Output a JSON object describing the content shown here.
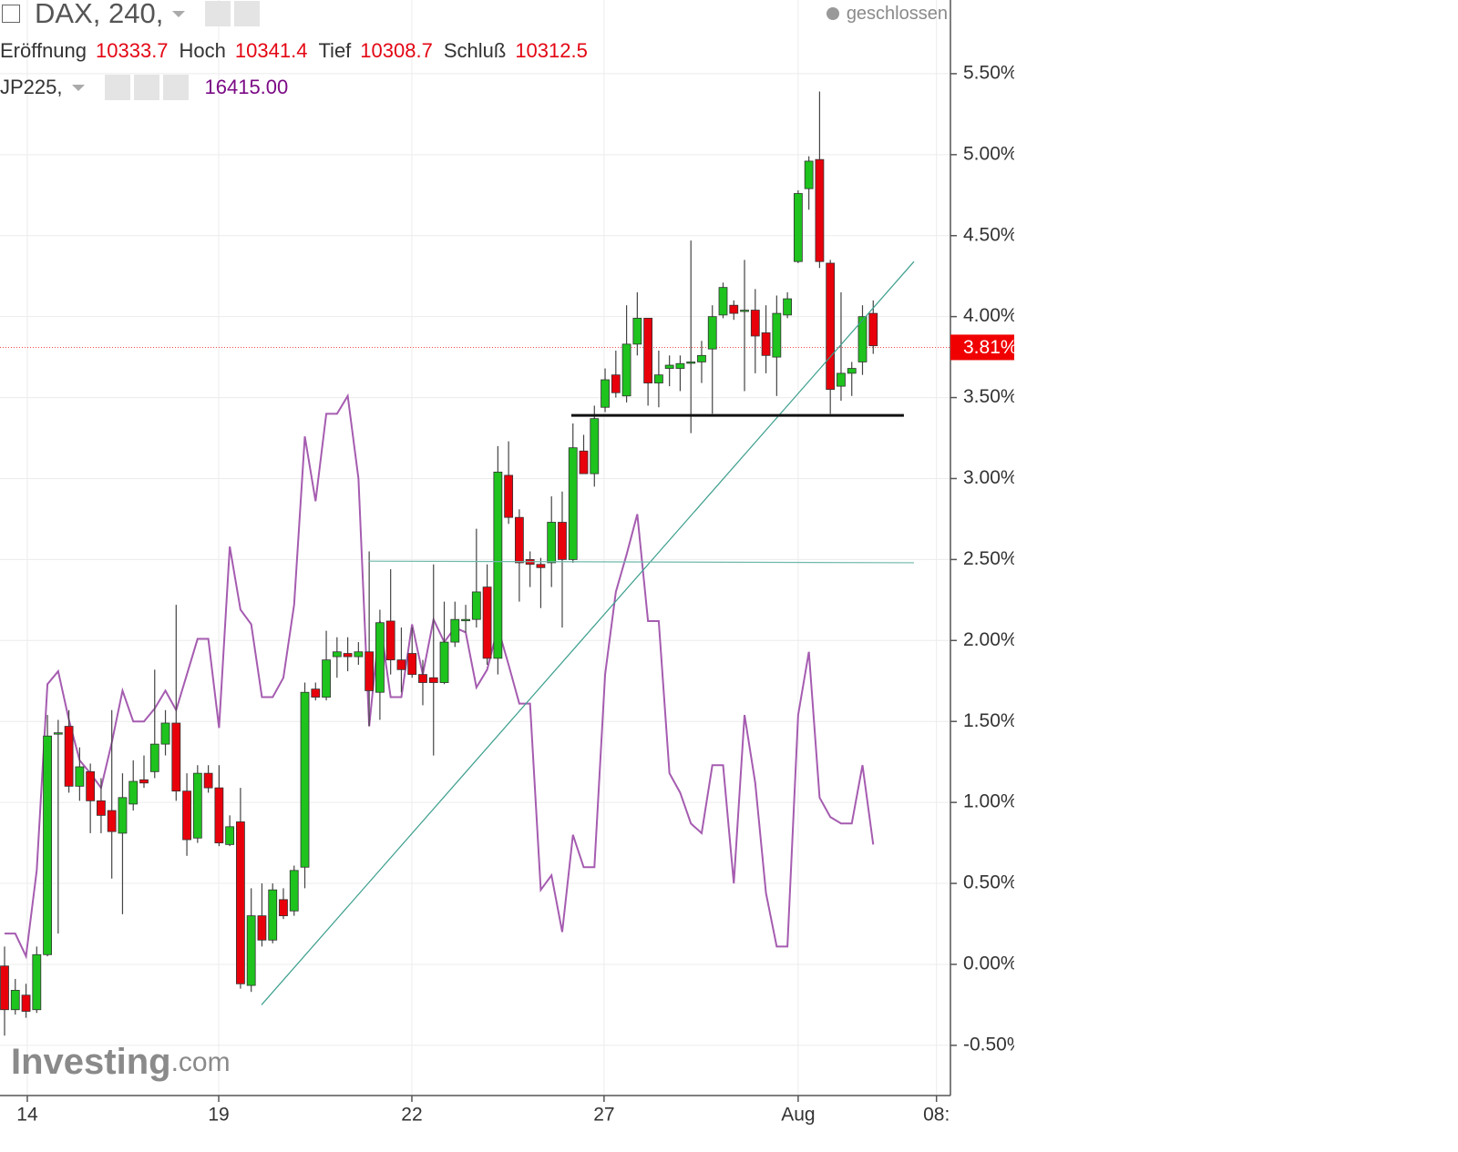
{
  "chart_data": {
    "type": "candlestick",
    "status": "geschlossen",
    "ohlc_header": [
      {
        "label": "Eröffnung",
        "value": "10333.7"
      },
      {
        "label": "Hoch",
        "value": "10341.4"
      },
      {
        "label": "Tief",
        "value": "10308.7"
      },
      {
        "label": "Schluß",
        "value": "10312.5"
      }
    ],
    "compare_value": "16415.00",
    "watermark": [
      "Investing",
      ".com"
    ],
    "x": [
      1,
      2,
      3,
      4,
      5,
      6,
      7,
      8,
      9,
      10,
      11,
      12,
      13,
      14,
      15,
      16,
      17,
      18,
      19,
      20,
      21,
      22,
      23,
      24,
      25,
      26,
      27,
      28,
      29,
      30,
      31,
      32,
      33,
      34,
      35,
      36,
      37,
      38,
      39,
      40,
      41,
      42,
      43,
      44,
      45,
      46,
      47,
      48,
      49,
      50,
      51,
      52,
      53,
      54,
      55,
      56,
      57,
      58,
      59,
      60,
      61,
      62,
      63,
      64,
      65,
      66,
      67,
      68,
      69,
      70,
      71,
      72,
      73,
      74,
      75,
      76,
      77,
      78,
      79,
      80,
      81,
      82
    ],
    "series": [
      {
        "name": "DAX, 240,",
        "type": "candlestick",
        "up_color": "#1ec31e",
        "down_color": "#e8000b",
        "open": [
          -0.01,
          -0.28,
          -0.19,
          -0.28,
          0.06,
          1.43,
          1.47,
          1.1,
          1.19,
          1.01,
          0.95,
          0.81,
          0.99,
          1.14,
          1.19,
          1.36,
          1.49,
          1.07,
          0.78,
          1.18,
          1.09,
          0.74,
          0.88,
          -0.13,
          0.3,
          0.15,
          0.4,
          0.33,
          0.6,
          1.7,
          1.65,
          1.9,
          1.92,
          1.9,
          1.93,
          1.68,
          2.12,
          1.88,
          1.92,
          1.79,
          1.77,
          1.74,
          1.99,
          2.13,
          2.13,
          2.33,
          1.89,
          3.02,
          2.76,
          2.5,
          2.47,
          2.48,
          2.73,
          2.5,
          3.17,
          3.03,
          3.44,
          3.64,
          3.51,
          3.83,
          3.99,
          3.59,
          3.68,
          3.68,
          3.72,
          3.72,
          3.8,
          4.01,
          4.07,
          4.04,
          4.04,
          3.9,
          3.75,
          4.01,
          4.34,
          4.79,
          4.97,
          4.33,
          3.57,
          3.65,
          3.72,
          4.02
        ],
        "high": [
          0.11,
          -0.09,
          -0.12,
          0.11,
          1.54,
          1.51,
          1.57,
          1.34,
          1.24,
          1.15,
          1.57,
          1.18,
          1.26,
          1.29,
          1.82,
          1.57,
          2.22,
          1.18,
          1.23,
          1.23,
          1.23,
          0.92,
          1.09,
          0.47,
          0.5,
          0.5,
          0.47,
          0.61,
          1.74,
          1.74,
          2.06,
          2.02,
          2.02,
          1.99,
          2.55,
          2.19,
          2.44,
          2.08,
          2.08,
          1.88,
          2.47,
          2.24,
          2.24,
          2.22,
          2.69,
          2.47,
          3.2,
          3.23,
          2.81,
          2.55,
          2.51,
          2.89,
          2.92,
          3.34,
          3.27,
          3.45,
          3.68,
          3.79,
          4.07,
          4.15,
          3.99,
          3.79,
          3.76,
          3.76,
          4.47,
          3.85,
          4.07,
          4.21,
          4.1,
          4.35,
          4.17,
          4.07,
          4.13,
          4.15,
          4.78,
          4.99,
          5.39,
          4.35,
          4.15,
          3.72,
          4.07,
          4.1
        ],
        "low": [
          -0.44,
          -0.31,
          -0.33,
          -0.3,
          0.05,
          0.19,
          1.06,
          1.01,
          0.81,
          0.81,
          0.53,
          0.31,
          0.95,
          1.09,
          1.15,
          1.29,
          1.01,
          0.67,
          0.75,
          1.06,
          0.73,
          0.73,
          -0.15,
          -0.17,
          0.11,
          0.13,
          0.28,
          0.3,
          0.47,
          1.63,
          1.63,
          1.77,
          1.81,
          1.85,
          1.47,
          1.51,
          1.79,
          1.68,
          1.77,
          1.6,
          1.29,
          1.73,
          1.96,
          2.05,
          2.08,
          1.85,
          1.79,
          2.72,
          2.24,
          2.33,
          2.2,
          2.33,
          2.08,
          2.48,
          3.03,
          2.95,
          3.41,
          3.5,
          3.47,
          3.76,
          3.45,
          3.44,
          3.57,
          3.54,
          3.28,
          3.59,
          3.4,
          3.99,
          3.98,
          3.54,
          3.65,
          3.65,
          3.51,
          3.99,
          4.33,
          4.66,
          4.3,
          3.4,
          3.48,
          3.51,
          3.64,
          3.77
        ],
        "close": [
          -0.28,
          -0.16,
          -0.29,
          0.06,
          1.41,
          1.43,
          1.1,
          1.22,
          1.01,
          0.92,
          0.82,
          1.03,
          1.13,
          1.12,
          1.36,
          1.49,
          1.07,
          0.77,
          1.18,
          1.09,
          0.75,
          0.85,
          -0.12,
          0.3,
          0.15,
          0.46,
          0.3,
          0.58,
          1.68,
          1.65,
          1.88,
          1.93,
          1.9,
          1.93,
          1.69,
          2.11,
          1.88,
          1.82,
          1.79,
          1.74,
          1.74,
          1.99,
          2.13,
          2.13,
          2.3,
          1.89,
          3.04,
          2.76,
          2.48,
          2.47,
          2.45,
          2.73,
          2.5,
          3.19,
          3.03,
          3.37,
          3.61,
          3.53,
          3.83,
          3.99,
          3.59,
          3.64,
          3.7,
          3.71,
          3.72,
          3.76,
          4.0,
          4.18,
          4.02,
          4.04,
          3.88,
          3.76,
          4.02,
          4.11,
          4.76,
          4.96,
          4.34,
          3.55,
          3.65,
          3.68,
          4.0,
          3.82
        ]
      },
      {
        "name": "JP225,",
        "type": "line",
        "color": "#a55cb0",
        "values": [
          0.19,
          0.19,
          0.05,
          0.58,
          1.73,
          1.81,
          1.51,
          1.26,
          1.18,
          1.09,
          1.37,
          1.69,
          1.5,
          1.5,
          1.58,
          1.69,
          1.57,
          1.79,
          2.01,
          2.01,
          1.46,
          2.58,
          2.19,
          2.1,
          1.65,
          1.65,
          1.77,
          2.22,
          3.26,
          2.86,
          3.4,
          3.4,
          3.51,
          3.0,
          1.47,
          2.12,
          1.65,
          1.65,
          2.1,
          1.79,
          2.13,
          1.99,
          2.08,
          2.05,
          1.71,
          1.82,
          2.08,
          1.85,
          1.61,
          1.61,
          0.46,
          0.55,
          0.2,
          0.8,
          0.6,
          0.6,
          1.79,
          2.3,
          2.53,
          2.78,
          2.12,
          2.12,
          1.18,
          1.06,
          0.87,
          0.81,
          1.23,
          1.23,
          0.5,
          1.54,
          1.12,
          0.44,
          0.11,
          0.11,
          1.54,
          1.93,
          1.03,
          0.91,
          0.87,
          0.87,
          1.23,
          0.74
        ]
      }
    ],
    "trend_lines": [
      {
        "x1": 24.96,
        "y1": -0.25,
        "x2": 85.8,
        "y2": 4.34,
        "color": "#3a9e8c",
        "width": 1.2
      },
      {
        "x1": 34.98,
        "y1": 2.49,
        "x2": 85.8,
        "y2": 2.48,
        "color": "#6fb8ab",
        "width": 1.2
      },
      {
        "x1": 53.85,
        "y1": 3.39,
        "x2": 84.86,
        "y2": 3.39,
        "color": "#111111",
        "width": 3
      }
    ],
    "last_price": {
      "value": 3.81,
      "label": "3.81%",
      "color": "#f00000"
    },
    "xlim": [
      0.575,
      89.2
    ],
    "ylim": [
      -0.81,
      5.955
    ],
    "xticks": [
      {
        "value": 3.12,
        "label": "14"
      },
      {
        "value": 20.97,
        "label": "19"
      },
      {
        "value": 38.98,
        "label": "22"
      },
      {
        "value": 56.9,
        "label": "27"
      },
      {
        "value": 75.0,
        "label": "Aug"
      },
      {
        "value": 87.9,
        "label": "08:"
      }
    ],
    "yticks": [
      {
        "value": -0.5,
        "label": "-0.50%"
      },
      {
        "value": 0,
        "label": "0.00%"
      },
      {
        "value": 0.5,
        "label": "0.50%"
      },
      {
        "value": 1,
        "label": "1.00%"
      },
      {
        "value": 1.5,
        "label": "1.50%"
      },
      {
        "value": 2,
        "label": "2.00%"
      },
      {
        "value": 2.5,
        "label": "2.50%"
      },
      {
        "value": 3,
        "label": "3.00%"
      },
      {
        "value": 3.5,
        "label": "3.50%"
      },
      {
        "value": 4,
        "label": "4.00%"
      },
      {
        "value": 4.5,
        "label": "4.50%"
      },
      {
        "value": 5,
        "label": "5.00%"
      },
      {
        "value": 5.5,
        "label": "5.50%"
      }
    ],
    "grid": true
  }
}
